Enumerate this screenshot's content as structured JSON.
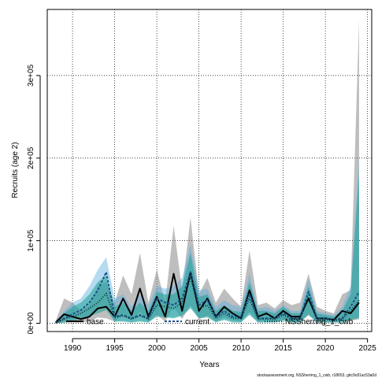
{
  "chart_data": {
    "type": "line",
    "xlabel": "Years",
    "ylabel": "Recruits (age 2)",
    "footnote": "stockassessment.org, NSSherring_1_cwb, r18653, gitc9c81ac53a0d",
    "xlim": [
      1987,
      2025.5
    ],
    "ylim": [
      -10000,
      380000
    ],
    "x_ticks": [
      1990,
      1995,
      2000,
      2005,
      2010,
      2015,
      2020,
      2025
    ],
    "y_ticks": [
      0,
      100000,
      200000,
      300000
    ],
    "y_tick_labels": [
      "0e+00",
      "1e+05",
      "2e+05",
      "3e+05"
    ],
    "grid": true,
    "legend_position": "bottom",
    "years": [
      1988,
      1989,
      1990,
      1991,
      1992,
      1993,
      1994,
      1995,
      1996,
      1997,
      1998,
      1999,
      2000,
      2001,
      2002,
      2003,
      2004,
      2005,
      2006,
      2007,
      2008,
      2009,
      2010,
      2011,
      2012,
      2013,
      2014,
      2015,
      2016,
      2017,
      2018,
      2019,
      2020,
      2021,
      2022,
      2023,
      2024
    ],
    "series": [
      {
        "name": "base",
        "color": "#000000",
        "band_color": "rgba(110,110,110,0.45)",
        "dash": "solid",
        "values": [
          1000,
          11000,
          8000,
          5000,
          8000,
          18000,
          20000,
          8000,
          30000,
          10000,
          42000,
          8000,
          32000,
          8000,
          60000,
          15000,
          62000,
          15000,
          30000,
          8000,
          20000,
          12000,
          6000,
          40000,
          8000,
          12000,
          6000,
          15000,
          8000,
          8000,
          30000,
          6000,
          6000,
          4000,
          15000,
          12000,
          25000
        ],
        "lower": [
          0,
          1000,
          1000,
          1000,
          2000,
          7000,
          6000,
          2000,
          10000,
          3000,
          14000,
          2000,
          10000,
          2000,
          20000,
          5000,
          22000,
          5000,
          9000,
          2000,
          7000,
          4000,
          2000,
          14000,
          2000,
          4000,
          2000,
          5000,
          2000,
          2000,
          10000,
          2000,
          1000,
          1000,
          3000,
          3000,
          5000
        ],
        "upper": [
          3000,
          30000,
          25000,
          15000,
          22000,
          45000,
          50000,
          25000,
          58000,
          35000,
          85000,
          25000,
          65000,
          25000,
          118000,
          40000,
          128000,
          35000,
          55000,
          25000,
          42000,
          30000,
          20000,
          88000,
          22000,
          25000,
          18000,
          28000,
          22000,
          25000,
          60000,
          20000,
          15000,
          12000,
          35000,
          40000,
          368000
        ]
      },
      {
        "name": "current",
        "color": "#1f4e8a",
        "band_color": "rgba(90,175,225,0.45)",
        "dash": "3,2",
        "values": [
          500,
          6000,
          11000,
          16000,
          25000,
          40000,
          62000,
          8000,
          10000,
          6000,
          10000,
          6000,
          30000,
          25000,
          22000,
          30000,
          62000,
          22000,
          28000,
          8000,
          15000,
          8000,
          8000,
          35000,
          6000,
          6000,
          6000,
          12000,
          6000,
          6000,
          38000,
          6000,
          6000,
          4000,
          6000,
          20000,
          38000
        ],
        "lower": [
          0,
          1000,
          4000,
          6000,
          9000,
          16000,
          22000,
          2000,
          3000,
          1000,
          3000,
          1000,
          10000,
          8000,
          7000,
          10000,
          20000,
          7000,
          9000,
          2000,
          5000,
          2000,
          2000,
          12000,
          1000,
          2000,
          1000,
          4000,
          1000,
          1000,
          12000,
          1000,
          1000,
          1000,
          1000,
          5000,
          8000
        ],
        "upper": [
          2000,
          15000,
          25000,
          30000,
          45000,
          65000,
          80000,
          30000,
          35000,
          20000,
          35000,
          22000,
          45000,
          42000,
          45000,
          55000,
          95000,
          40000,
          42000,
          20000,
          28000,
          22000,
          20000,
          60000,
          18000,
          20000,
          15000,
          22000,
          15000,
          15000,
          55000,
          15000,
          12000,
          10000,
          20000,
          45000,
          200000
        ]
      },
      {
        "name": "NSSherring_1_cwb",
        "color": "#0b3a3a",
        "band_color": "rgba(25,160,145,0.55)",
        "dash": "1,2",
        "values": [
          500,
          5000,
          8000,
          12000,
          18000,
          25000,
          36000,
          7000,
          9000,
          5000,
          9000,
          5000,
          22000,
          20000,
          18000,
          25000,
          55000,
          18000,
          22000,
          6000,
          12000,
          6000,
          6000,
          30000,
          5000,
          5000,
          5000,
          10000,
          5000,
          5000,
          32000,
          5000,
          5000,
          3000,
          5000,
          15000,
          28000
        ],
        "lower": [
          0,
          1000,
          3000,
          5000,
          8000,
          12000,
          16000,
          2000,
          2000,
          1000,
          2000,
          1000,
          8000,
          7000,
          6000,
          9000,
          18000,
          6000,
          7000,
          1000,
          4000,
          1000,
          1000,
          10000,
          1000,
          1000,
          1000,
          3000,
          1000,
          1000,
          10000,
          1000,
          1000,
          1000,
          1000,
          4000,
          6000
        ],
        "upper": [
          1500,
          12000,
          20000,
          25000,
          35000,
          50000,
          58000,
          20000,
          25000,
          15000,
          25000,
          15000,
          38000,
          35000,
          35000,
          45000,
          85000,
          32000,
          35000,
          15000,
          22000,
          15000,
          14000,
          50000,
          15000,
          15000,
          12000,
          20000,
          12000,
          12000,
          45000,
          12000,
          10000,
          8000,
          15000,
          35000,
          180000
        ]
      }
    ]
  }
}
